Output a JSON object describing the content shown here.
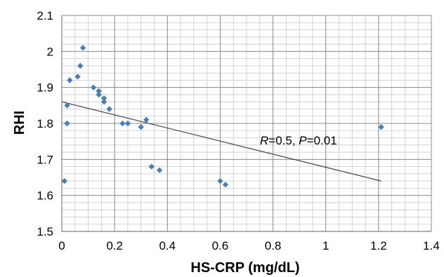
{
  "chart_data": {
    "type": "scatter",
    "title": "",
    "xlabel": "HS-CRP (mg/dL)",
    "ylabel": "RHI",
    "xlim": [
      0,
      1.4
    ],
    "ylim": [
      1.5,
      2.1
    ],
    "x_ticks": [
      "0",
      "0.2",
      "0.4",
      "0.6",
      "0.8",
      "1",
      "1.2",
      "1.4"
    ],
    "y_ticks": [
      "1.5",
      "1.6",
      "1.7",
      "1.8",
      "1.9",
      "2",
      "2.1"
    ],
    "grid": true,
    "marker_color": "#4a7ebb",
    "trendline_color": "#404040",
    "points": [
      {
        "x": 0.01,
        "y": 1.64
      },
      {
        "x": 0.02,
        "y": 1.85
      },
      {
        "x": 0.02,
        "y": 1.8
      },
      {
        "x": 0.03,
        "y": 1.92
      },
      {
        "x": 0.06,
        "y": 1.93
      },
      {
        "x": 0.07,
        "y": 1.96
      },
      {
        "x": 0.08,
        "y": 2.01
      },
      {
        "x": 0.12,
        "y": 1.9
      },
      {
        "x": 0.14,
        "y": 1.89
      },
      {
        "x": 0.14,
        "y": 1.88
      },
      {
        "x": 0.16,
        "y": 1.87
      },
      {
        "x": 0.16,
        "y": 1.86
      },
      {
        "x": 0.18,
        "y": 1.84
      },
      {
        "x": 0.23,
        "y": 1.8
      },
      {
        "x": 0.25,
        "y": 1.8
      },
      {
        "x": 0.3,
        "y": 1.79
      },
      {
        "x": 0.32,
        "y": 1.81
      },
      {
        "x": 0.34,
        "y": 1.68
      },
      {
        "x": 0.37,
        "y": 1.67
      },
      {
        "x": 0.6,
        "y": 1.64
      },
      {
        "x": 0.62,
        "y": 1.63
      },
      {
        "x": 1.21,
        "y": 1.79
      }
    ],
    "trendline": {
      "x": [
        0,
        1.21
      ],
      "y": [
        1.86,
        1.64
      ]
    },
    "annotation": {
      "r_label": "R",
      "r_value": "=0.5, ",
      "p_label": "P",
      "p_value": "=0.01"
    }
  }
}
